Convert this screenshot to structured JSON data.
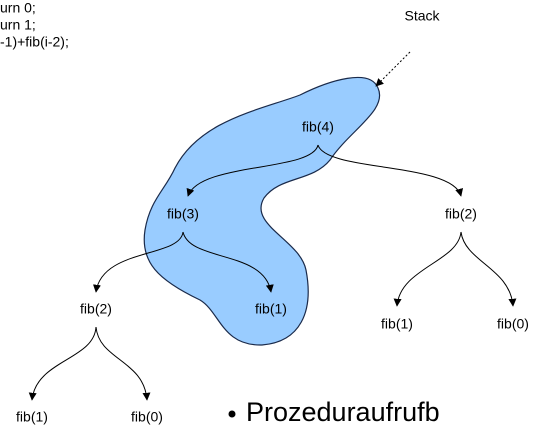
{
  "code": [
    "urn 0;",
    "urn 1;",
    "-1)+fib(i-2);"
  ],
  "stack_label": "Stack",
  "nodes": [
    {
      "label": "fib(4)"
    },
    {
      "label": "fib(3)"
    },
    {
      "label": "fib(2)"
    },
    {
      "label": "fib(2)"
    },
    {
      "label": "fib(1)"
    },
    {
      "label": "fib(1)"
    },
    {
      "label": "fib(0)"
    },
    {
      "label": "fib(1)"
    },
    {
      "label": "fib(0)"
    }
  ],
  "bullet": "Prozeduraufrufb"
}
